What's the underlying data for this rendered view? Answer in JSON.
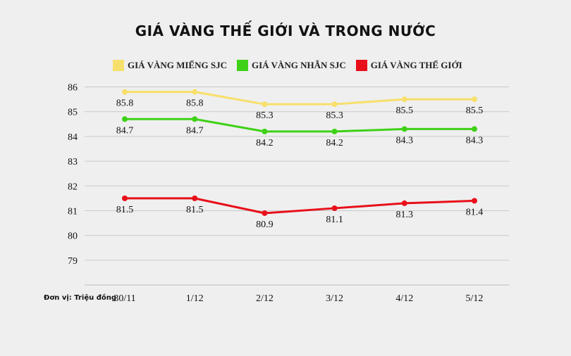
{
  "chart_data": {
    "type": "line",
    "title": "GIÁ VÀNG THẾ GIỚI VÀ TRONG NƯỚC",
    "categories": [
      "30/11",
      "1/12",
      "2/12",
      "3/12",
      "4/12",
      "5/12"
    ],
    "y_ticks": [
      79,
      80,
      81,
      82,
      83,
      84,
      85,
      86
    ],
    "ylim": [
      78,
      86.3
    ],
    "grid": true,
    "legend_position": "top",
    "unit_note": "Đơn vị: Triệu đồng",
    "series": [
      {
        "name": "GIÁ VÀNG MIẾNG SJC",
        "color": "#f7df6b",
        "values": [
          85.8,
          85.8,
          85.3,
          85.3,
          85.5,
          85.5
        ]
      },
      {
        "name": "GIÁ VÀNG NHẪN SJC",
        "color": "#3fd117",
        "values": [
          84.7,
          84.7,
          84.2,
          84.2,
          84.3,
          84.3
        ]
      },
      {
        "name": "GIÁ VÀNG THẾ GIỚI",
        "color": "#e8101a",
        "values": [
          81.5,
          81.5,
          80.9,
          81.1,
          81.3,
          81.4
        ]
      }
    ]
  }
}
